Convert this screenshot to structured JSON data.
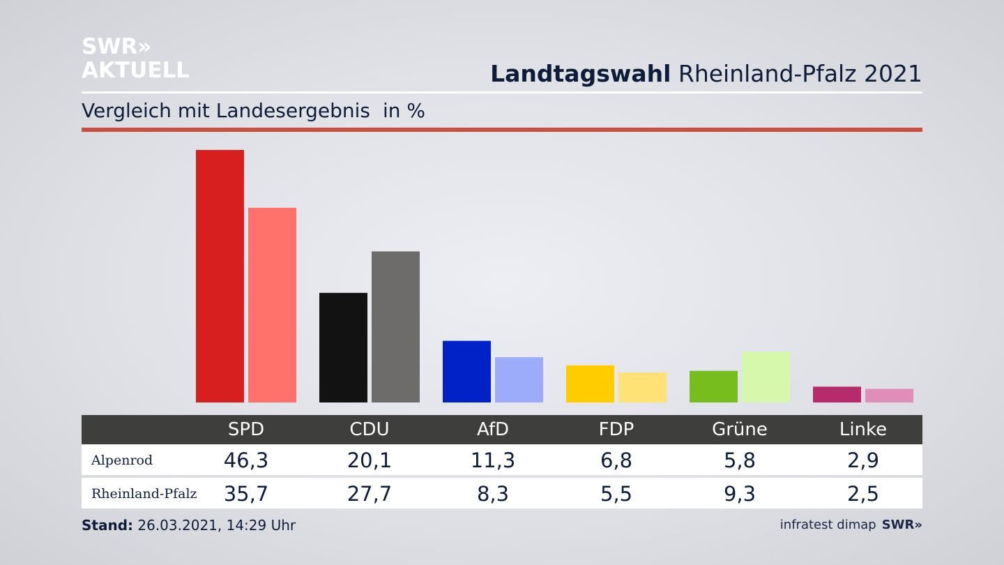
{
  "branding": {
    "logo_line1": "SWR»",
    "logo_line2": "AKTUELL",
    "footer_logo": "SWR»"
  },
  "header": {
    "title_bold": "Landtagswahl",
    "title_rest": "Rheinland-Pfalz 2021"
  },
  "subtitle": {
    "text": "Vergleich mit Landesergebnis",
    "unit": "in %"
  },
  "chart_data": {
    "type": "bar",
    "categories": [
      "SPD",
      "CDU",
      "AfD",
      "FDP",
      "Grüne",
      "Linke"
    ],
    "series": [
      {
        "name": "Alpenrod",
        "values": [
          46.3,
          20.1,
          11.3,
          6.8,
          5.8,
          2.9
        ],
        "colors": [
          "#d71f20",
          "#121212",
          "#0022c7",
          "#ffcc00",
          "#78bd1e",
          "#b52b6c"
        ]
      },
      {
        "name": "Rheinland-Pfalz",
        "values": [
          35.7,
          27.7,
          8.3,
          5.5,
          9.3,
          2.5
        ],
        "colors": [
          "#ff716a",
          "#6e6c6a",
          "#9dabfb",
          "#ffe277",
          "#d5f8ad",
          "#e08db9"
        ]
      }
    ],
    "ylim": [
      0,
      46.3
    ],
    "grid": false,
    "legend": "table-below"
  },
  "table": {
    "rows": [
      {
        "label": "Alpenrod",
        "values": [
          "46,3",
          "20,1",
          "11,3",
          "6,8",
          "5,8",
          "2,9"
        ]
      },
      {
        "label": "Rheinland-Pfalz",
        "values": [
          "35,7",
          "27,7",
          "8,3",
          "5,5",
          "9,3",
          "2,5"
        ]
      }
    ]
  },
  "footer": {
    "stand_label": "Stand:",
    "stand_value": "26.03.2021, 14:29 Uhr",
    "source": "infratest dimap"
  },
  "colors": {
    "accent_rule": "#c9503e",
    "table_header": "#3e3e3c",
    "text": "#0e1c3a"
  }
}
